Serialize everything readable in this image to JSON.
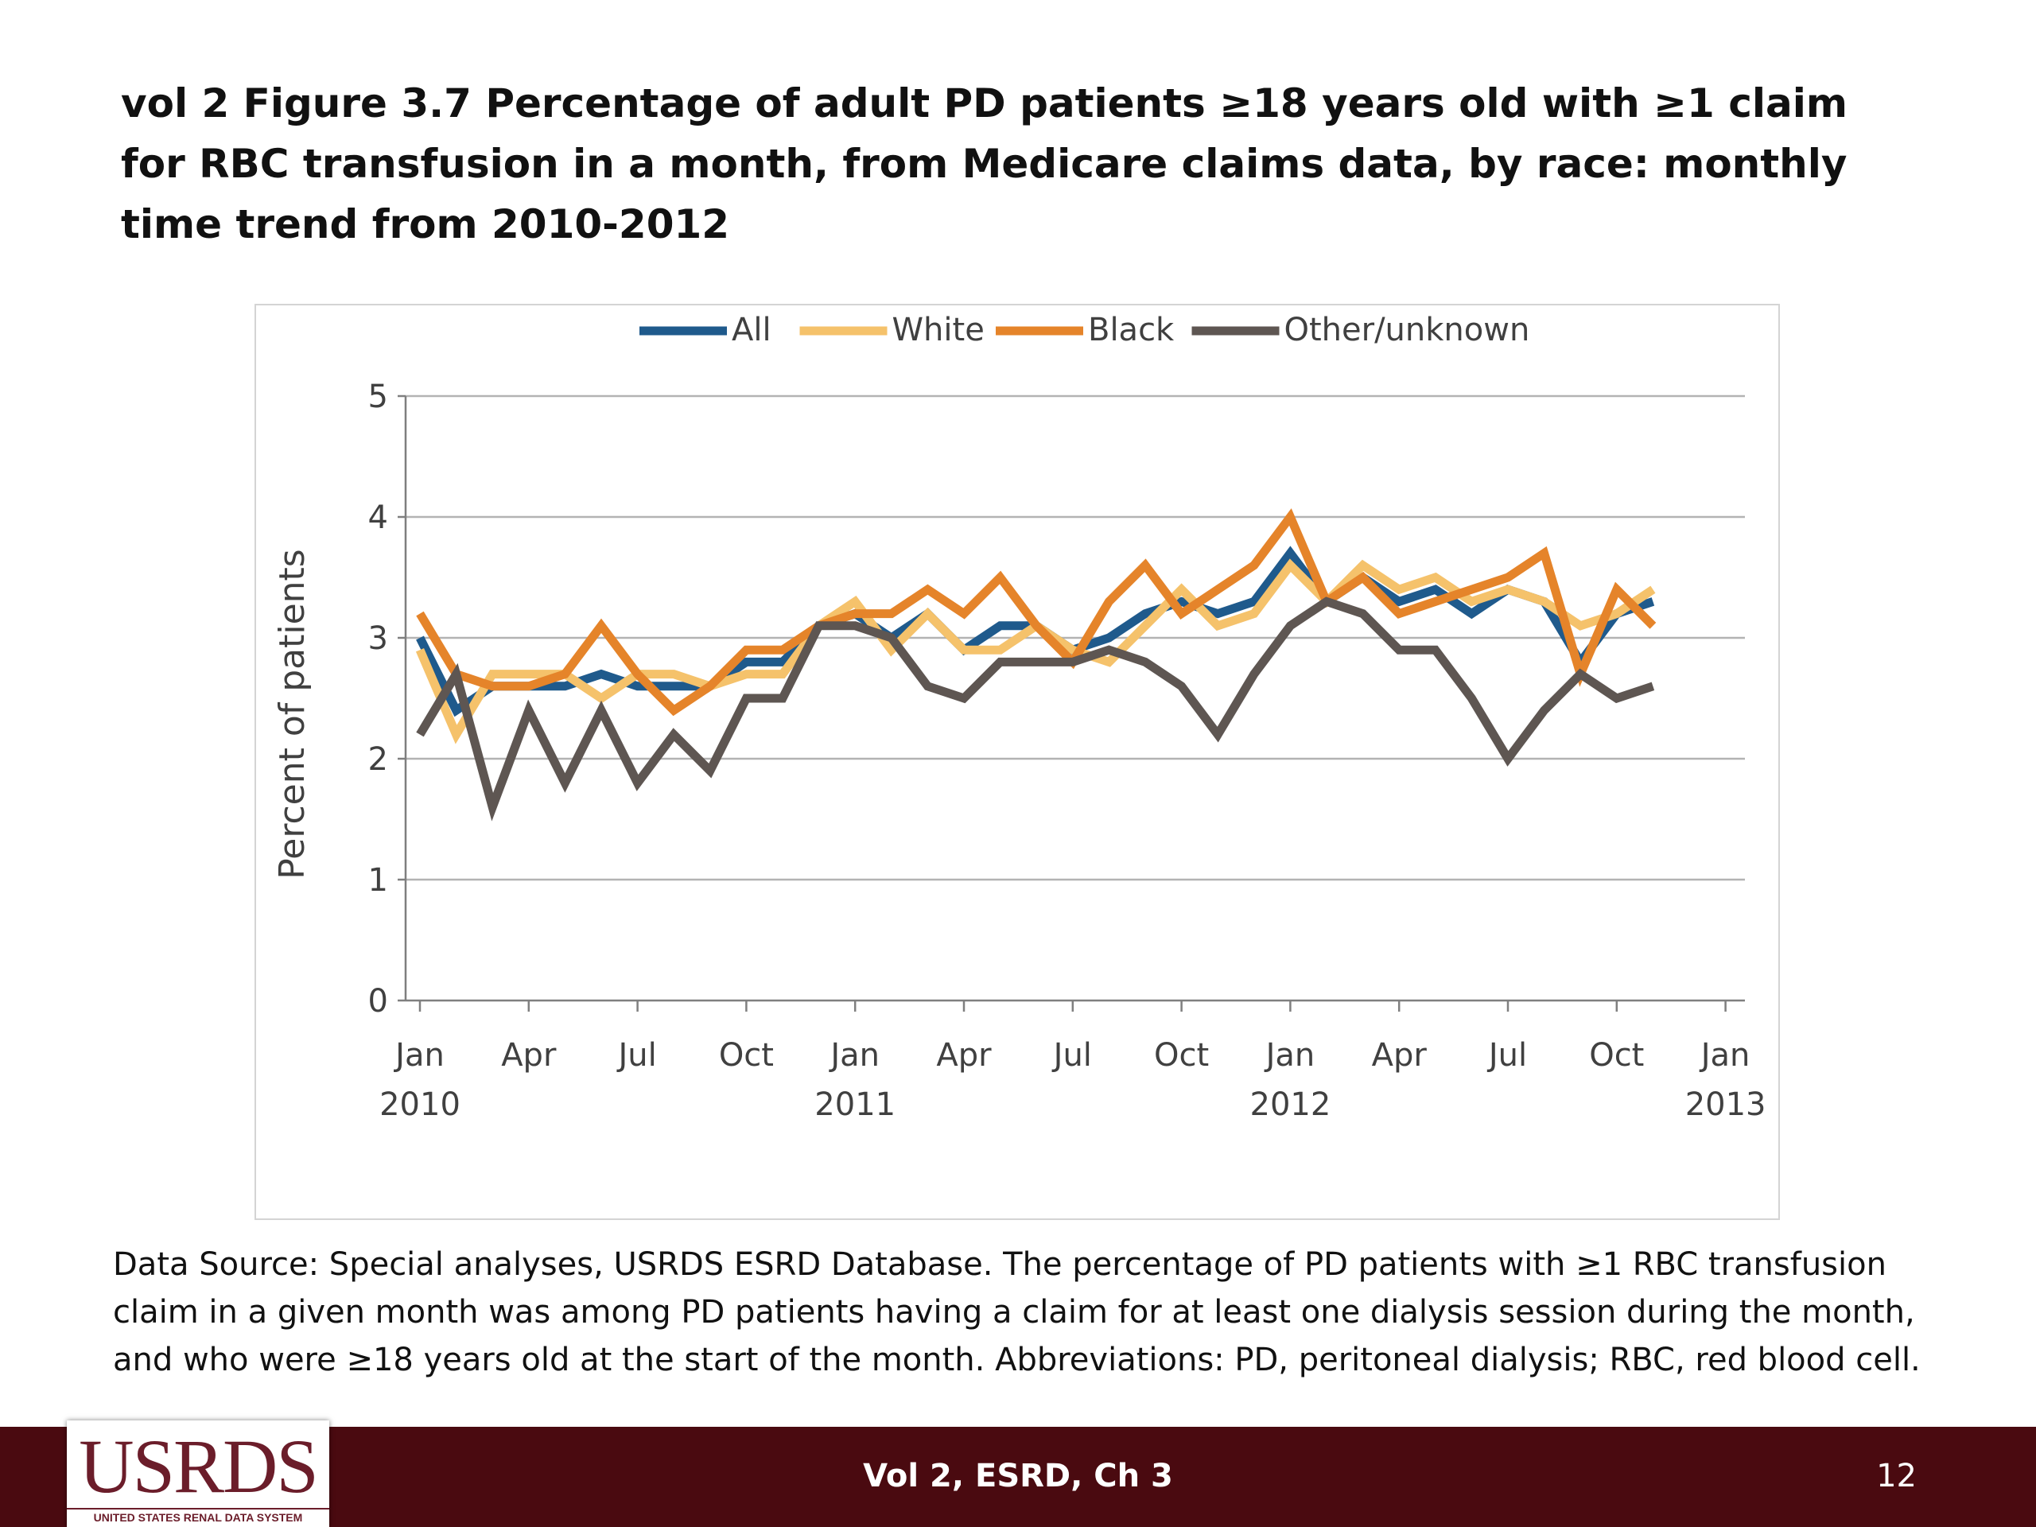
{
  "slide": {
    "title": "vol 2  Figure 3.7 Percentage of adult PD patients ≥18 years old with ≥1 claim for RBC transfusion in a month, from Medicare claims data, by race: monthly time trend from 2010-2012",
    "caption": "Data Source: Special analyses, USRDS ESRD Database. The percentage of PD patients with ≥1 RBC transfusion claim in a given month was among PD patients having a claim for at least one dialysis session during the month, and who were ≥18 years old at the start of the month. Abbreviations: PD, peritoneal dialysis; RBC, red blood cell.",
    "footer_text": "Vol 2, ESRD, Ch 3",
    "page_number": "12",
    "logo_text": "USRDS",
    "logo_subtext": "UNITED STATES RENAL DATA SYSTEM"
  },
  "chart_data": {
    "type": "line",
    "title": "",
    "xlabel": "",
    "ylabel": "Percent of patients",
    "ylim": [
      0,
      5
    ],
    "yticks": [
      0,
      1,
      2,
      3,
      4,
      5
    ],
    "grid": true,
    "legend_position": "top",
    "x_tick_labels": [
      {
        "month": "Jan",
        "year": "2010"
      },
      {
        "month": "Apr",
        "year": ""
      },
      {
        "month": "Jul",
        "year": ""
      },
      {
        "month": "Oct",
        "year": ""
      },
      {
        "month": "Jan",
        "year": "2011"
      },
      {
        "month": "Apr",
        "year": ""
      },
      {
        "month": "Jul",
        "year": ""
      },
      {
        "month": "Oct",
        "year": ""
      },
      {
        "month": "Jan",
        "year": "2012"
      },
      {
        "month": "Apr",
        "year": ""
      },
      {
        "month": "Jul",
        "year": ""
      },
      {
        "month": "Oct",
        "year": ""
      },
      {
        "month": "Jan",
        "year": "2013"
      }
    ],
    "x": [
      "2010-01",
      "2010-02",
      "2010-03",
      "2010-04",
      "2010-05",
      "2010-06",
      "2010-07",
      "2010-08",
      "2010-09",
      "2010-10",
      "2010-11",
      "2010-12",
      "2011-01",
      "2011-02",
      "2011-03",
      "2011-04",
      "2011-05",
      "2011-06",
      "2011-07",
      "2011-08",
      "2011-09",
      "2011-10",
      "2011-11",
      "2011-12",
      "2012-01",
      "2012-02",
      "2012-03",
      "2012-04",
      "2012-05",
      "2012-06",
      "2012-07",
      "2012-08",
      "2012-09",
      "2012-10",
      "2012-11",
      "2012-12"
    ],
    "series": [
      {
        "name": "All",
        "color": "#1f5a8c",
        "values": [
          3.0,
          2.4,
          2.6,
          2.6,
          2.6,
          2.7,
          2.6,
          2.6,
          2.6,
          2.8,
          2.8,
          3.1,
          3.2,
          3.0,
          3.2,
          2.9,
          3.1,
          3.1,
          2.9,
          3.0,
          3.2,
          3.3,
          3.2,
          3.3,
          3.7,
          3.3,
          3.5,
          3.3,
          3.4,
          3.2,
          3.4,
          3.3,
          2.8,
          3.2,
          3.3,
          null
        ]
      },
      {
        "name": "White",
        "color": "#f5c26b",
        "values": [
          2.9,
          2.2,
          2.7,
          2.7,
          2.7,
          2.5,
          2.7,
          2.7,
          2.6,
          2.7,
          2.7,
          3.1,
          3.3,
          2.9,
          3.2,
          2.9,
          2.9,
          3.1,
          2.9,
          2.8,
          3.1,
          3.4,
          3.1,
          3.2,
          3.6,
          3.3,
          3.6,
          3.4,
          3.5,
          3.3,
          3.4,
          3.3,
          3.1,
          3.2,
          3.4,
          null
        ]
      },
      {
        "name": "Black",
        "color": "#e5842a",
        "values": [
          3.2,
          2.7,
          2.6,
          2.6,
          2.7,
          3.1,
          2.7,
          2.4,
          2.6,
          2.9,
          2.9,
          3.1,
          3.2,
          3.2,
          3.4,
          3.2,
          3.5,
          3.1,
          2.8,
          3.3,
          3.6,
          3.2,
          3.4,
          3.6,
          4.0,
          3.3,
          3.5,
          3.2,
          3.3,
          3.4,
          3.5,
          3.7,
          2.7,
          3.4,
          3.1,
          null
        ]
      },
      {
        "name": "Other/unknown",
        "color": "#5e5652",
        "values": [
          2.2,
          2.7,
          1.6,
          2.4,
          1.8,
          2.4,
          1.8,
          2.2,
          1.9,
          2.5,
          2.5,
          3.1,
          3.1,
          3.0,
          2.6,
          2.5,
          2.8,
          2.8,
          2.8,
          2.9,
          2.8,
          2.6,
          2.2,
          2.7,
          3.1,
          3.3,
          3.2,
          2.9,
          2.9,
          2.5,
          2.0,
          2.4,
          2.7,
          2.5,
          2.6,
          null
        ]
      }
    ]
  }
}
